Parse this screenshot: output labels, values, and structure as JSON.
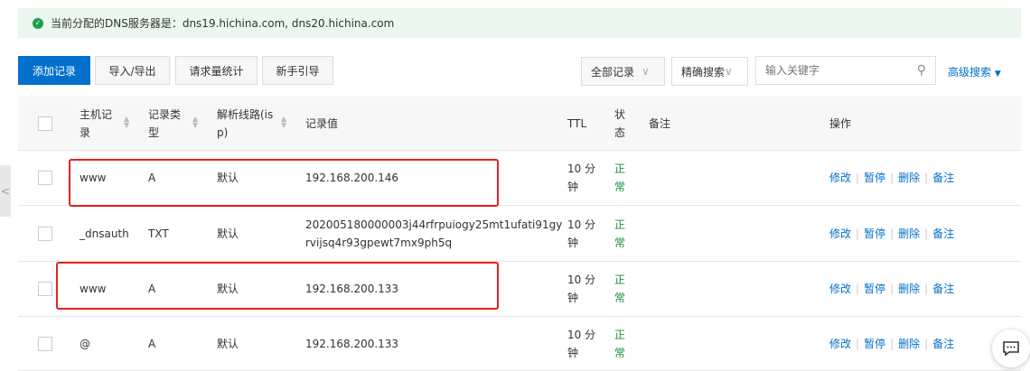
{
  "banner": {
    "text": "当前分配的DNS服务器是：dns19.hichina.com, dns20.hichina.com"
  },
  "toolbar": {
    "add": "添加记录",
    "import_export": "导入/导出",
    "stats": "请求量统计",
    "guide": "新手引导",
    "filter": "全部记录",
    "search_mode": "精确搜索",
    "search_placeholder": "输入关键字",
    "advanced": "高级搜索"
  },
  "table": {
    "headers": {
      "host": "主机记录",
      "type": "记录类型",
      "line": "解析线路(isp)",
      "value": "记录值",
      "ttl": "TTL",
      "status": "状态",
      "note": "备注",
      "ops": "操作"
    },
    "rows": [
      {
        "host": "www",
        "type": "A",
        "line": "默认",
        "value": "192.168.200.146",
        "ttl": "10 分钟",
        "status": "正常"
      },
      {
        "host": "_dnsauth",
        "type": "TXT",
        "line": "默认",
        "value": "202005180000003j44rfrpuiogy25mt1ufati91gyrvijsq4r93gpewt7mx9ph5q",
        "ttl": "10 分钟",
        "status": "正常"
      },
      {
        "host": "www",
        "type": "A",
        "line": "默认",
        "value": "192.168.200.133",
        "ttl": "10 分钟",
        "status": "正常"
      },
      {
        "host": "@",
        "type": "A",
        "line": "默认",
        "value": "192.168.200.133",
        "ttl": "10 分钟",
        "status": "正常"
      }
    ],
    "actions": {
      "edit": "修改",
      "pause": "暂停",
      "delete": "删除",
      "note": "备注"
    }
  },
  "colors": {
    "primary": "#0070cc",
    "status_ok": "#1e8e3e",
    "highlight": "#e62020"
  }
}
